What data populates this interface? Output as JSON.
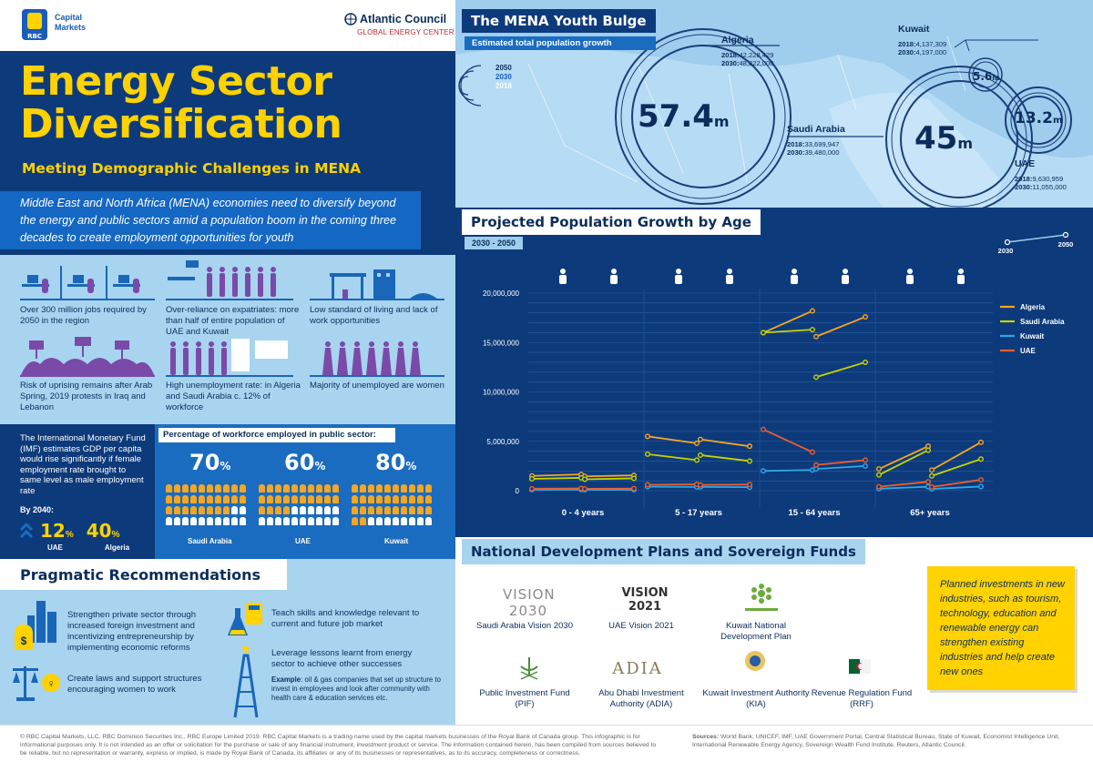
{
  "logos": {
    "rbc": "RBC",
    "capital": "Capital",
    "markets": "Markets",
    "atlantic": "Atlantic Council",
    "gec": "GLOBAL ENERGY CENTER"
  },
  "title": {
    "line1": "Energy Sector",
    "line2": "Diversification",
    "subtitle": "Meeting Demographic Challenges in MENA"
  },
  "intro": "Middle East and North Africa (MENA) economies need to diversify beyond the energy and public sectors amid a population boom in the coming three decades to create employment opportunities for youth",
  "points": [
    "Over 300 million jobs required by 2050 in the region",
    "Over-reliance on expatriates: more than half of entire population of UAE and Kuwait",
    "Low standard of living and lack of work opportunities",
    "Risk of uprising remains after Arab Spring, 2019 protests in Iraq and Lebanon",
    "High unemployment rate: in Algeria and Saudi Arabia c. 12% of workforce",
    "Majority of unemployed are women"
  ],
  "imf": {
    "text": "The International Monetary Fund (IMF) estimates GDP per capita would rise significantly if female employment rate brought to same level as male employment rate",
    "by2040": "By 2040:",
    "items": [
      {
        "value": "12",
        "unit": "%",
        "label": "UAE"
      },
      {
        "value": "40",
        "unit": "%",
        "label": "Algeria"
      }
    ]
  },
  "sector": {
    "heading": "Percentage of workforce employed in public sector:",
    "items": [
      {
        "value": "70",
        "unit": "%",
        "country": "Saudi Arabia",
        "share": 0.7
      },
      {
        "value": "60",
        "unit": "%",
        "country": "UAE",
        "share": 0.6
      },
      {
        "value": "80",
        "unit": "%",
        "country": "Kuwait",
        "share": 0.8
      }
    ]
  },
  "recommendations": {
    "heading": "Pragmatic Recommendations",
    "items": [
      "Strengthen private sector through increased foreign investment and incentivizing entrepreneurship by implementing economic reforms",
      "Create laws and support structures encouraging women to work",
      "Teach skills and knowledge relevant to current and future job market",
      "Leverage lessons learnt from energy sector to achieve other successes"
    ],
    "example_label": "Example",
    "example_text": ": oil & gas companies that set up structure to invest in employees and look after community with health care & education services etc."
  },
  "map": {
    "heading": "The MENA Youth Bulge",
    "subheading": "Estimated total population growth",
    "legend": [
      "2050",
      "2030",
      "2018"
    ],
    "countries": [
      {
        "name": "Algeria",
        "y2018": "42,228,429",
        "y2030": "48,822,000",
        "value": "57.4",
        "unit": "m"
      },
      {
        "name": "Kuwait",
        "y2018": "4,137,309",
        "y2030": "4,197,000",
        "value": "5.6",
        "unit": "m"
      },
      {
        "name": "Saudi Arabia",
        "y2018": "33,699,947",
        "y2030": "39,480,000",
        "value": "45",
        "unit": "m"
      },
      {
        "name": "UAE",
        "y2018": "9,630,959",
        "y2030": "11,055,000",
        "value": "13.2",
        "unit": "m"
      }
    ],
    "label2018": "2018:",
    "label2030": "2030:"
  },
  "chart_data": {
    "type": "line",
    "title": "Projected Population Growth by Age",
    "subtitle": "2030 - 2050",
    "legend_years": [
      "2030",
      "2050"
    ],
    "yticks": [
      "20,000,000",
      "15,000,000",
      "10,000,000",
      "5,000,000",
      "0"
    ],
    "ylim": [
      0,
      20000000
    ],
    "groups": [
      "0 - 4 years",
      "5 - 17 years",
      "15 - 64 years",
      "65+ years"
    ],
    "series": [
      {
        "name": "Algeria",
        "color": "#f5a623",
        "male": [
          [
            1500000,
            1650000
          ],
          [
            5500000,
            4800000
          ],
          [
            16000000,
            18200000
          ],
          [
            2200000,
            4500000
          ]
        ],
        "female": [
          [
            1450000,
            1550000
          ],
          [
            5200000,
            4500000
          ],
          [
            15600000,
            17600000
          ],
          [
            2100000,
            4900000
          ]
        ]
      },
      {
        "name": "Saudi Arabia",
        "color": "#c8d400",
        "male": [
          [
            1200000,
            1300000
          ],
          [
            3700000,
            3100000
          ],
          [
            16000000,
            16300000
          ],
          [
            1600000,
            4100000
          ]
        ],
        "female": [
          [
            1150000,
            1250000
          ],
          [
            3600000,
            3000000
          ],
          [
            11500000,
            13000000
          ],
          [
            1500000,
            3200000
          ]
        ]
      },
      {
        "name": "Kuwait",
        "color": "#2ea8e8",
        "male": [
          [
            100000,
            110000
          ],
          [
            400000,
            380000
          ],
          [
            2000000,
            2100000
          ],
          [
            200000,
            400000
          ]
        ],
        "female": [
          [
            90000,
            100000
          ],
          [
            380000,
            360000
          ],
          [
            2200000,
            2500000
          ],
          [
            180000,
            420000
          ]
        ]
      },
      {
        "name": "UAE",
        "color": "#ec5f2e",
        "male": [
          [
            200000,
            230000
          ],
          [
            600000,
            640000
          ],
          [
            6200000,
            3900000
          ],
          [
            400000,
            900000
          ]
        ],
        "female": [
          [
            190000,
            220000
          ],
          [
            580000,
            620000
          ],
          [
            2600000,
            3100000
          ],
          [
            380000,
            1100000
          ]
        ]
      }
    ]
  },
  "plans": {
    "heading": "National Development Plans and Sovereign Funds",
    "items": [
      {
        "name": "Saudi Arabia Vision 2030",
        "logo": "VISION 2030"
      },
      {
        "name": "UAE Vision 2021",
        "logo": "VISION 2021"
      },
      {
        "name": "Kuwait National Development Plan",
        "logo": ""
      },
      {
        "name": "Public Investment Fund (PIF)",
        "logo": ""
      },
      {
        "name": "Abu Dhabi Investment Authority (ADIA)",
        "logo": "ADIA"
      },
      {
        "name": "Kuwait Investment Authority (KIA)",
        "logo": ""
      },
      {
        "name": "Revenue Regulation Fund (RRF)",
        "logo": ""
      }
    ],
    "callout": "Planned investments in new industries, such as tourism, technology, education and renewable energy can strengthen existing industries and help create new ones"
  },
  "footer": {
    "left": "© RBC Capital Markets, LLC, RBC Dominion Securities Inc., RBC Europe Limited 2019. RBC Capital Markets is a trading name used by the capital markets businesses of the Royal Bank of Canada group. This infographic is for informational purposes only. It is not intended as an offer or solicitation for the purchase or sale of any financial instrument, investment product or service. The information contained herein, has been compiled from sources believed to be reliable, but no representation or warranty, express or implied, is made by Royal Bank of Canada, its affiliates or any of its businesses or representatives, as to its accuracy, completeness or correctness.",
    "sources_label": "Sources:",
    "sources": " World Bank, UNICEF, IMF, UAE Government Portal, Central Statistical Bureau, State of Kuwait, Economist Intelligence Unit, International Renewable Energy Agency, Sovereign Wealth Fund Institute, Reuters, Atlantic Council."
  }
}
